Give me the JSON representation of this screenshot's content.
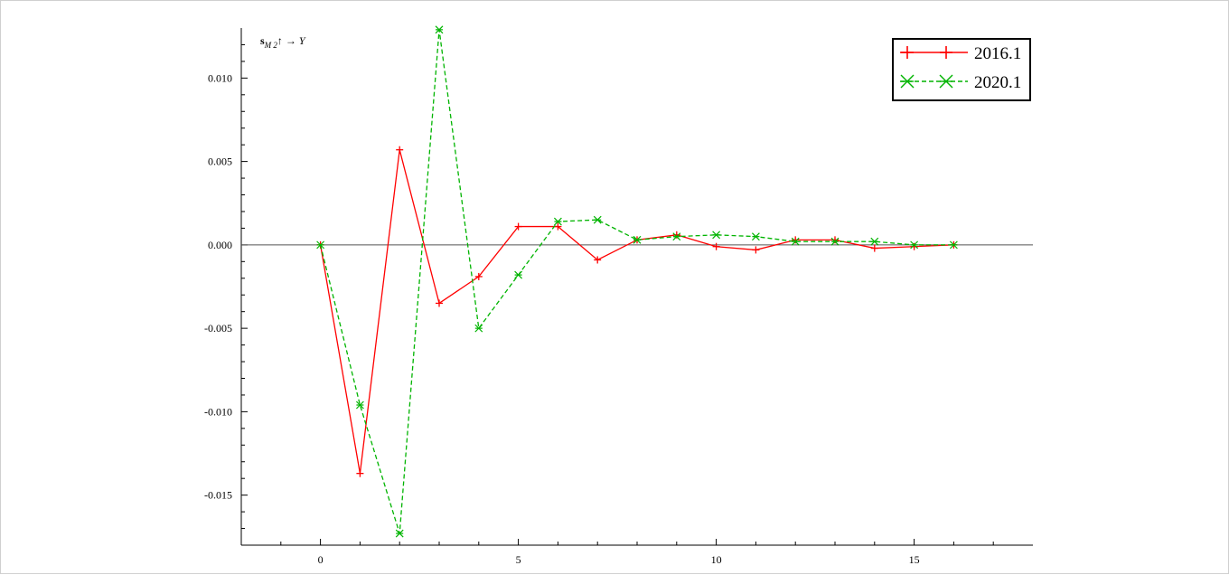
{
  "chart_data": {
    "type": "line",
    "ylabel": {
      "base": "s",
      "sub": "M 2",
      "tail": "↑ → Y"
    },
    "xlim": [
      -2,
      18
    ],
    "ylim": [
      -0.018,
      0.013
    ],
    "xticks": [
      0,
      5,
      10,
      15
    ],
    "xtick_labels": [
      "0",
      "5",
      "10",
      "15"
    ],
    "yticks": [
      0.01,
      0.005,
      0.0,
      -0.005,
      -0.01,
      -0.015
    ],
    "ytick_labels": [
      "0.010",
      "0.005",
      "0.000",
      "-0.005",
      "-0.010",
      "-0.015"
    ],
    "zero_line": true,
    "grid": false,
    "legend_position": "top-right",
    "x": [
      0,
      1,
      2,
      3,
      4,
      5,
      6,
      7,
      8,
      9,
      10,
      11,
      12,
      13,
      14,
      15,
      16
    ],
    "series": [
      {
        "name": "2016.1",
        "color": "#ff0000",
        "line_style": "solid",
        "marker": "plus",
        "values": [
          0.0,
          -0.0137,
          0.0057,
          -0.0035,
          -0.0019,
          0.0011,
          0.0011,
          -0.0009,
          0.0003,
          0.0006,
          -0.0001,
          -0.0003,
          0.0003,
          0.0003,
          -0.0002,
          -0.0001,
          0.0
        ]
      },
      {
        "name": "2020.1",
        "color": "#00b400",
        "line_style": "dashed",
        "marker": "star",
        "values": [
          0.0,
          -0.0096,
          -0.0173,
          0.0129,
          -0.005,
          -0.0018,
          0.0014,
          0.0015,
          0.0003,
          0.0005,
          0.0006,
          0.0005,
          0.0002,
          0.0002,
          0.0002,
          0.0,
          0.0
        ]
      }
    ]
  }
}
